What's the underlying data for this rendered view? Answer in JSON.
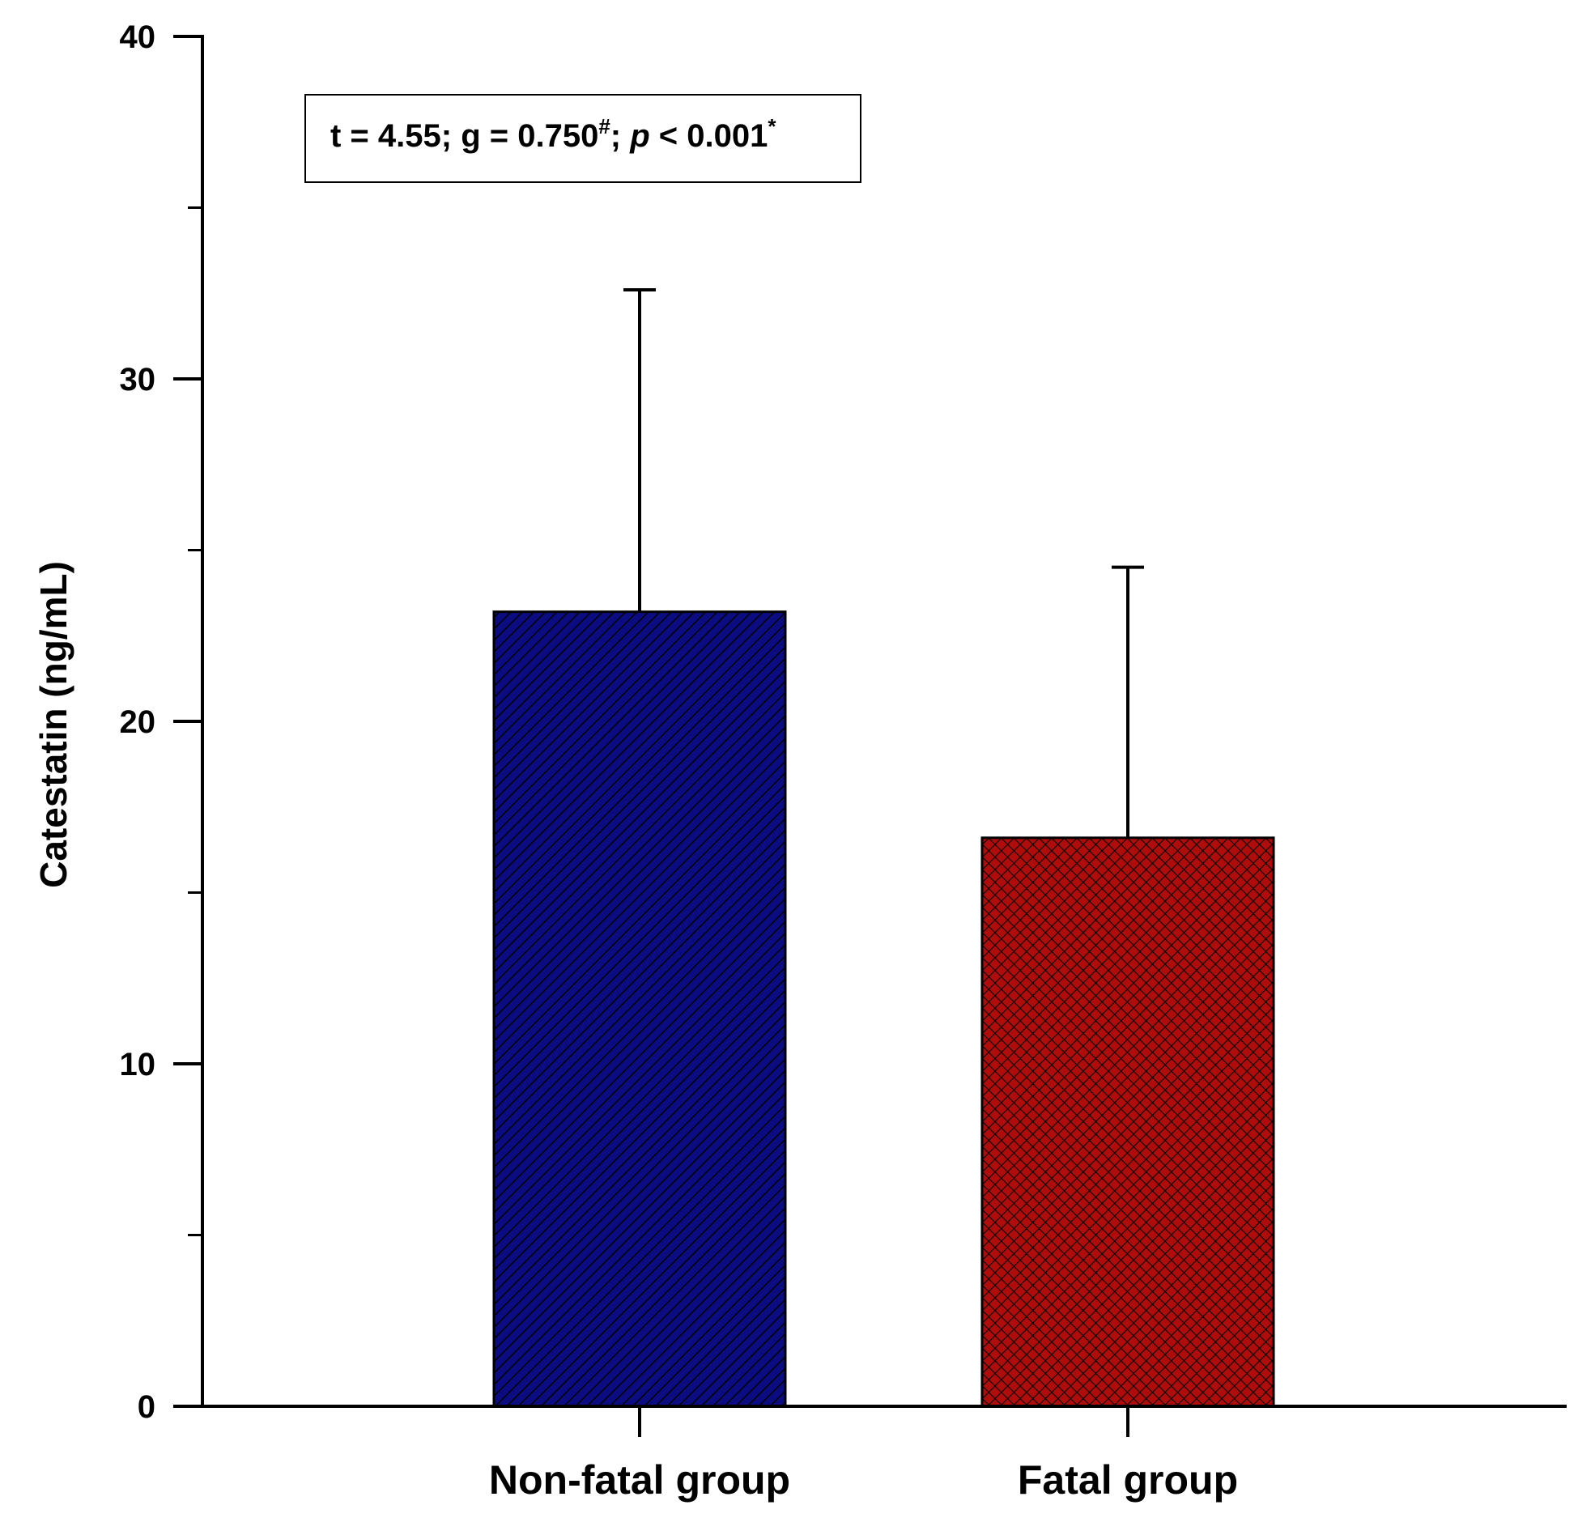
{
  "chart_data": {
    "type": "bar",
    "ylabel": "Catestatin (ng/mL)",
    "xlabel": "",
    "ylim": [
      0,
      40
    ],
    "yticks": [
      0,
      10,
      20,
      30,
      40
    ],
    "yminor_ticks": [
      5,
      15,
      25,
      35
    ],
    "grid": false,
    "categories": [
      "Non-fatal group",
      "Fatal group"
    ],
    "values": [
      23.2,
      16.6
    ],
    "error_upper": [
      32.6,
      24.5
    ],
    "colors": [
      "#0c0c82",
      "#b00c0c"
    ],
    "patterns": [
      "diagonal-hatch",
      "cross-hatch"
    ],
    "annotation": {
      "t_part": "t = 4.55; g = 0.750",
      "hash": "#",
      "semi": "; ",
      "p": "p",
      "p_rest": " < 0.001",
      "star": "*"
    }
  }
}
